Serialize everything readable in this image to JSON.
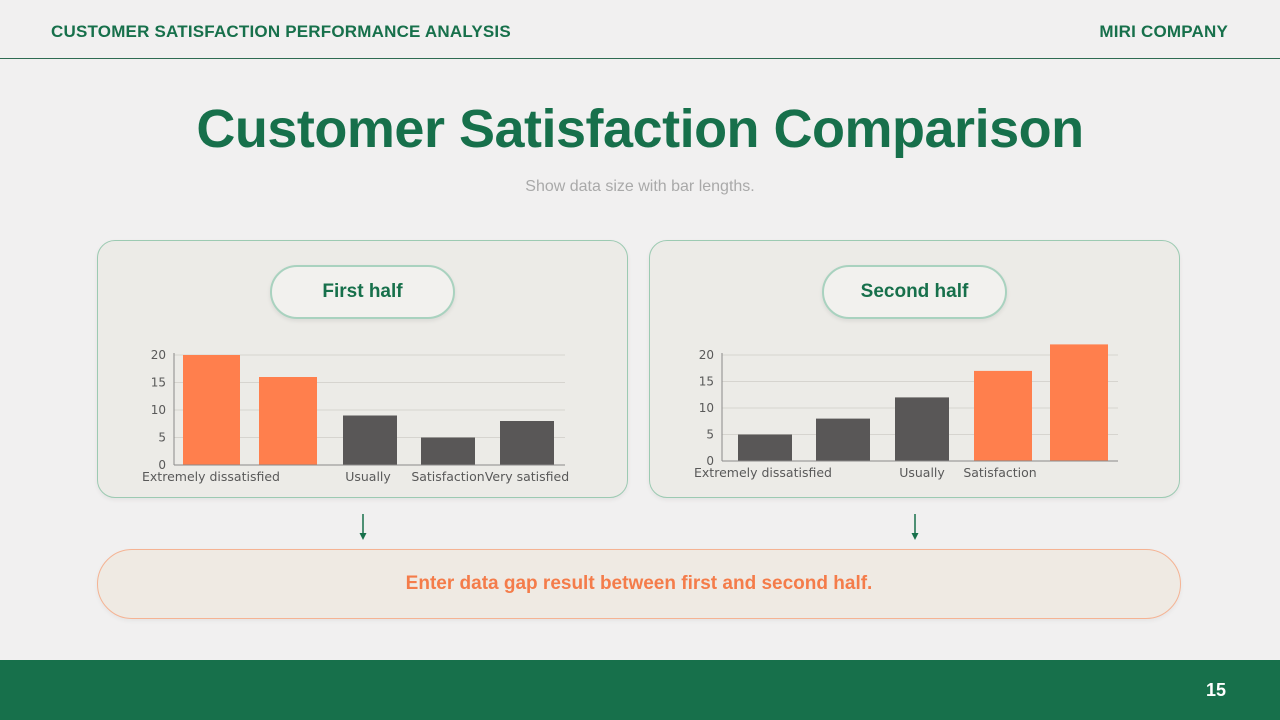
{
  "header": {
    "left_title": "CUSTOMER SATISFACTION PERFORMANCE ANALYSIS",
    "right_title": "MIRI COMPANY"
  },
  "title": "Customer Satisfaction Comparison",
  "subtitle": "Show data size with bar lengths.",
  "result_text": "Enter data gap result between first and second half.",
  "page_number": "15",
  "colors": {
    "brand_green": "#17704b",
    "highlight_orange": "#ff7f4d",
    "bar_gray": "#595757"
  },
  "chart_data": [
    {
      "type": "bar",
      "title": "First half",
      "categories": [
        "Extremely dissatisfied",
        "",
        "Usually",
        "Satisfaction",
        "Very satisfied"
      ],
      "category_labels_shown": [
        "Extremely dissatisfied",
        "Usually",
        "Satisfaction",
        "Very satisfied"
      ],
      "values": [
        20,
        16,
        9,
        5,
        8
      ],
      "highlight": [
        true,
        true,
        false,
        false,
        false
      ],
      "yticks": [
        0,
        5,
        10,
        15,
        20
      ],
      "ylim": [
        0,
        20
      ],
      "grid": true
    },
    {
      "type": "bar",
      "title": "Second half",
      "categories": [
        "Extremely dissatisfied",
        "",
        "Usually",
        "Satisfaction",
        ""
      ],
      "category_labels_shown": [
        "Extremely dissatisfied",
        "Usually",
        "Satisfaction"
      ],
      "values": [
        5,
        8,
        12,
        17,
        22
      ],
      "highlight": [
        false,
        false,
        false,
        true,
        true
      ],
      "yticks": [
        0,
        5,
        10,
        15,
        20
      ],
      "ylim": [
        0,
        20
      ],
      "grid": true
    }
  ]
}
